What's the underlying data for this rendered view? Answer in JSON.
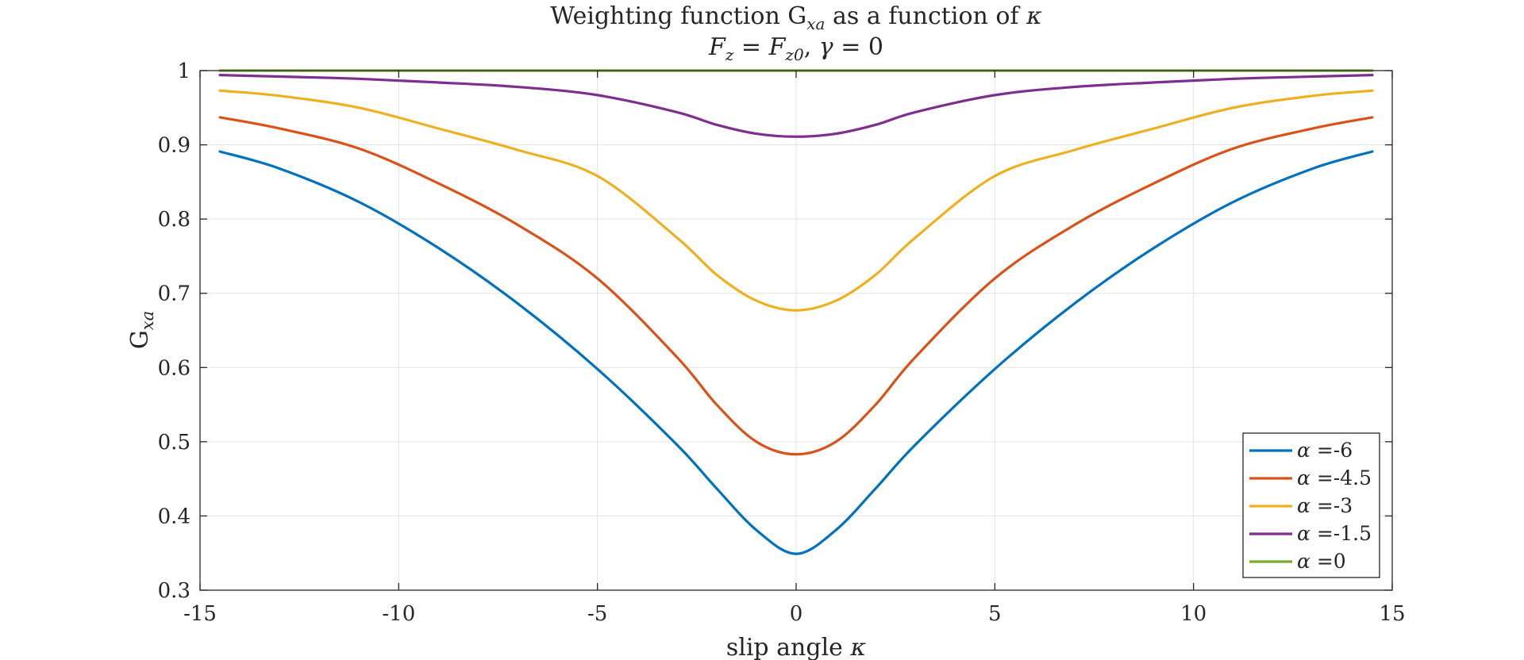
{
  "chart_data": {
    "type": "line",
    "title": "Weighting function G_xa as a function of κ",
    "subtitle": "F_z = F_z0, γ = 0",
    "title_parts": {
      "prefix": "Weighting function G",
      "sub": "xa",
      "suffix": " as a function of ",
      "symbol": "κ"
    },
    "subtitle_parts": {
      "f1": "F",
      "f1_sub": "z",
      "eq1": " = ",
      "f2": "F",
      "f2_sub": "z0",
      "sep": ", ",
      "gamma": "γ",
      "eq2": " = 0"
    },
    "xlabel": "slip angle κ",
    "xlabel_parts": {
      "text": "slip angle ",
      "symbol": "κ"
    },
    "ylabel": "G_xa",
    "ylabel_parts": {
      "main": "G",
      "sub": "xa"
    },
    "xlim": [
      -15,
      15
    ],
    "ylim": [
      0.3,
      1
    ],
    "xticks": [
      -15,
      -10,
      -5,
      0,
      5,
      10,
      15
    ],
    "yticks": [
      0.3,
      0.4,
      0.5,
      0.6,
      0.7,
      0.8,
      0.9,
      1
    ],
    "xtick_labels": [
      "-15",
      "-10",
      "-5",
      "0",
      "5",
      "10",
      "15"
    ],
    "ytick_labels": [
      "0.3",
      "0.4",
      "0.5",
      "0.6",
      "0.7",
      "0.8",
      "0.9",
      "1"
    ],
    "grid": true,
    "legend_position": "bottom-right",
    "x": [
      -14.5,
      -13,
      -11,
      -9,
      -7,
      -5,
      -3,
      -2,
      -1,
      0,
      1,
      2,
      3,
      5,
      7,
      9,
      11,
      13,
      14.5
    ],
    "series": [
      {
        "name": "α =-6",
        "symbol": "α",
        "label_suffix": " =-6",
        "color": "#0072BD",
        "values": [
          0.891,
          0.868,
          0.823,
          0.761,
          0.686,
          0.598,
          0.496,
          0.437,
          0.381,
          0.349,
          0.381,
          0.437,
          0.496,
          0.598,
          0.686,
          0.761,
          0.823,
          0.868,
          0.891
        ]
      },
      {
        "name": "α =-4.5",
        "symbol": "α",
        "label_suffix": " =-4.5",
        "color": "#D95319",
        "values": [
          0.937,
          0.922,
          0.895,
          0.848,
          0.792,
          0.72,
          0.614,
          0.55,
          0.5,
          0.483,
          0.5,
          0.55,
          0.614,
          0.72,
          0.792,
          0.848,
          0.895,
          0.922,
          0.937
        ]
      },
      {
        "name": "α =-3",
        "symbol": "α",
        "label_suffix": " =-3",
        "color": "#EDB120",
        "values": [
          0.973,
          0.966,
          0.95,
          0.922,
          0.893,
          0.858,
          0.775,
          0.725,
          0.69,
          0.677,
          0.69,
          0.725,
          0.775,
          0.858,
          0.893,
          0.922,
          0.95,
          0.966,
          0.973
        ]
      },
      {
        "name": "α =-1.5",
        "symbol": "α",
        "label_suffix": " =-1.5",
        "color": "#7E2F8E",
        "values": [
          0.994,
          0.992,
          0.989,
          0.984,
          0.978,
          0.967,
          0.944,
          0.927,
          0.915,
          0.911,
          0.915,
          0.927,
          0.944,
          0.967,
          0.978,
          0.984,
          0.989,
          0.992,
          0.994
        ]
      },
      {
        "name": "α =0",
        "symbol": "α",
        "label_suffix": " =0",
        "color": "#77AC30",
        "values": [
          1,
          1,
          1,
          1,
          1,
          1,
          1,
          1,
          1,
          1,
          1,
          1,
          1,
          1,
          1,
          1,
          1,
          1,
          1
        ]
      }
    ]
  }
}
